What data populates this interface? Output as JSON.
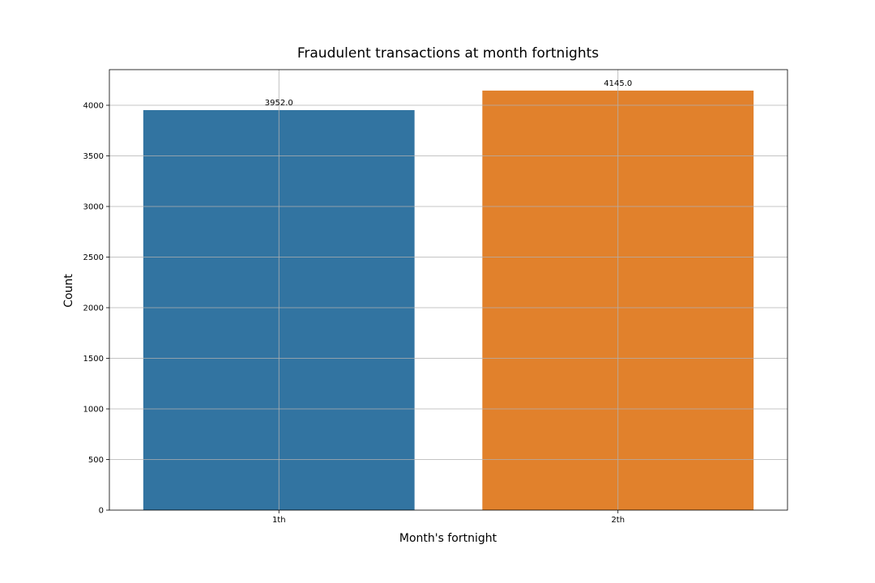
{
  "chart_data": {
    "type": "bar",
    "title": "Fraudulent transactions at month fortnights",
    "xlabel": "Month's fortnight",
    "ylabel": "Count",
    "categories": [
      "1th",
      "2th"
    ],
    "values": [
      3952.0,
      4145.0
    ],
    "value_labels": [
      "3952.0",
      "4145.0"
    ],
    "colors": [
      "#3274a1",
      "#e1812c"
    ],
    "ylim": [
      0,
      4352
    ],
    "yticks": [
      0,
      500,
      1000,
      1500,
      2000,
      2500,
      3000,
      3500,
      4000
    ],
    "ytick_labels": [
      "0",
      "500",
      "1000",
      "1500",
      "2000",
      "2500",
      "3000",
      "3500",
      "4000"
    ],
    "grid": true
  }
}
